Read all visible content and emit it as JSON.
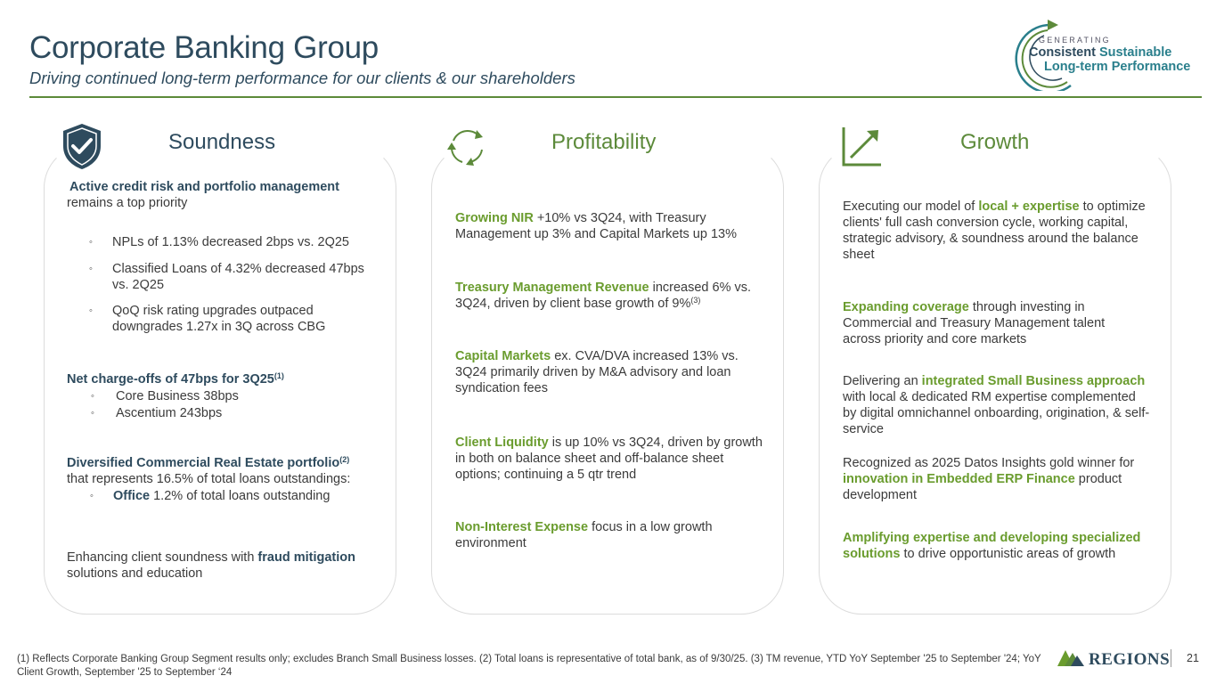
{
  "header": {
    "title": "Corporate Banking Group",
    "subtitle": "Driving continued long-term performance for our clients & our shareholders"
  },
  "logo": {
    "generating": "GENERATING",
    "consistent": "Consistent",
    "sustainable": "Sustainable",
    "long_term": "Long-term Performance",
    "icon": "circular-arrow-icon"
  },
  "soundness": {
    "heading": "Soundness",
    "icon": "shield-check-icon",
    "intro_bold": "Active credit risk and portfolio management",
    "intro_rest": "remains a top priority",
    "bullets": [
      "NPLs of 1.13% decreased 2bps vs. 2Q25",
      "Classified Loans of 4.32% decreased 47bps vs. 2Q25",
      "QoQ risk rating upgrades outpaced downgrades 1.27x  in 3Q across CBG"
    ],
    "nco_bold": "Net charge-offs of 47bps for 3Q25",
    "nco_sup": "(1)",
    "nco_bullets": [
      "Core Business 38bps",
      "Ascentium 243bps"
    ],
    "cre_bold": "Diversified Commercial Real Estate portfolio",
    "cre_sup": "(2)",
    "cre_rest": "that represents 16.5% of total loans outstandings:",
    "office_bold": "Office",
    "office_rest": " 1.2% of total loans outstanding",
    "fraud_pre": "Enhancing client soundness with ",
    "fraud_bold": "fraud mitigation",
    "fraud_rest": "solutions and education",
    "bullet_marker": "◦"
  },
  "profitability": {
    "heading": "Profitability",
    "icon": "refresh-cycle-icon",
    "items": [
      {
        "bold": "Growing NIR",
        "rest": " +10% vs 3Q24, with Treasury Management up 3% and Capital Markets up 13%",
        "sup": ""
      },
      {
        "bold": "Treasury Management Revenue",
        "rest": " increased 6% vs. 3Q24, driven by client base growth of 9%",
        "sup": "(3)"
      },
      {
        "bold": "Capital Markets",
        "rest": " ex. CVA/DVA increased 13% vs. 3Q24 primarily driven by M&A advisory and loan syndication fees",
        "sup": ""
      },
      {
        "bold": "Client Liquidity",
        "rest": " is up 10% vs 3Q24, driven by growth in both on balance sheet and off-balance sheet options; continuing a 5 qtr trend",
        "sup": ""
      },
      {
        "bold": "Non-Interest Expense",
        "rest": " focus in a low growth environment",
        "sup": ""
      }
    ]
  },
  "growth": {
    "heading": "Growth",
    "icon": "growth-arrow-icon",
    "p1_pre": "Executing our model of ",
    "p1_hl": "local + expertise",
    "p1_rest": " to optimize clients' full cash conversion cycle, working capital, strategic advisory, & soundness around the balance sheet",
    "p2_hl": "Expanding coverage",
    "p2_rest": " through investing in Commercial and Treasury Management talent across priority and core markets",
    "p3_pre": "Delivering an ",
    "p3_hl": "integrated Small Business approach",
    "p3_rest": " with local & dedicated RM expertise complemented by digital omnichannel onboarding, origination, & self-service",
    "p4_pre": "Recognized as 2025 Datos Insights gold winner for ",
    "p4_hl": "innovation in Embedded ERP Finance",
    "p4_rest": " product development",
    "p5_hl": "Amplifying expertise and developing specialized solutions",
    "p5_rest": " to drive opportunistic areas of growth"
  },
  "footer": {
    "note": "(1) Reflects Corporate Banking Group Segment results only; excludes Branch Small Business losses.  (2) Total loans is representative of total bank, as of 9/30/25.  (3) TM revenue, YTD YoY September '25 to September '24; YoY Client Growth, September '25 to September ‘24",
    "brand": "REGIONS",
    "page": "21"
  },
  "colors": {
    "navy": "#2e4b5e",
    "green": "#6a9c2e",
    "teal": "#2a7f8c"
  }
}
